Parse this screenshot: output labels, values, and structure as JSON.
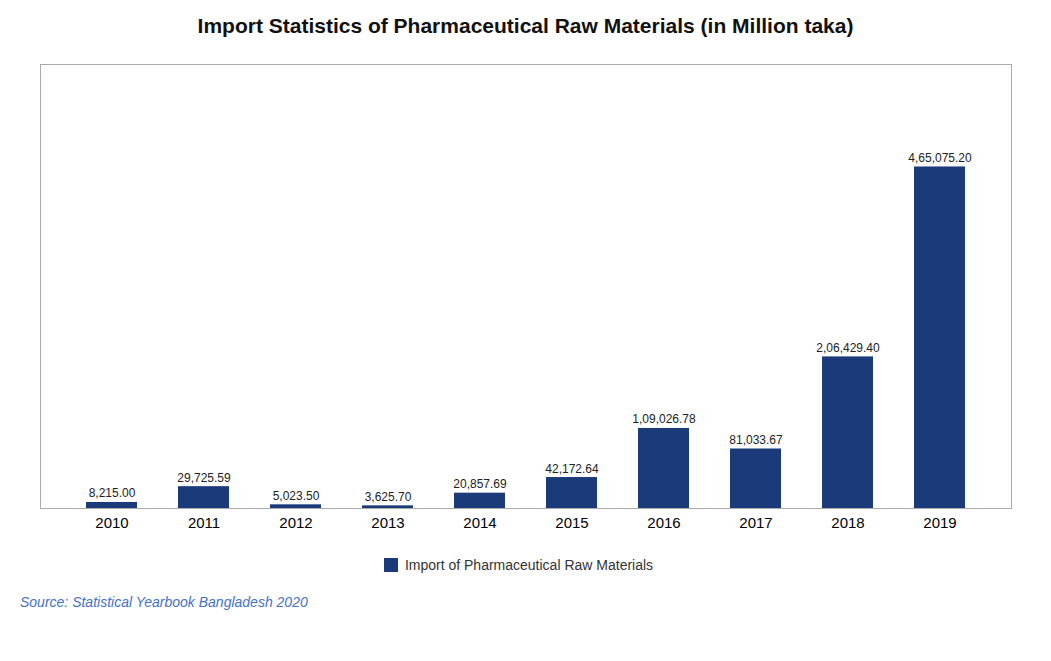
{
  "chart_data": {
    "type": "bar",
    "title": "Import Statistics of Pharmaceutical Raw Materials (in Million taka)",
    "categories": [
      "2010",
      "2011",
      "2012",
      "2013",
      "2014",
      "2015",
      "2016",
      "2017",
      "2018",
      "2019"
    ],
    "series": [
      {
        "name": "Import of Pharmaceutical Raw Materials",
        "color": "#1a3a7a",
        "values": [
          8215.0,
          29725.59,
          5023.5,
          3625.7,
          20857.69,
          42172.64,
          109026.78,
          81033.67,
          206429.4,
          465075.2
        ],
        "value_labels": [
          "8,215.00",
          "29,725.59",
          "5,023.50",
          "3,625.70",
          "20,857.69",
          "42,172.64",
          "1,09,026.78",
          "81,033.67",
          "2,06,429.40",
          "4,65,075.20"
        ]
      }
    ],
    "ylim": [
      0,
      604597.76
    ],
    "yticks": [],
    "tick_labels": "x",
    "grid": false,
    "data_labels": true,
    "legend": "lower center",
    "annotations": [
      {
        "text": "Source: Statistical Yearbook Bangladesh 2020",
        "color": "#4472c4"
      }
    ]
  }
}
